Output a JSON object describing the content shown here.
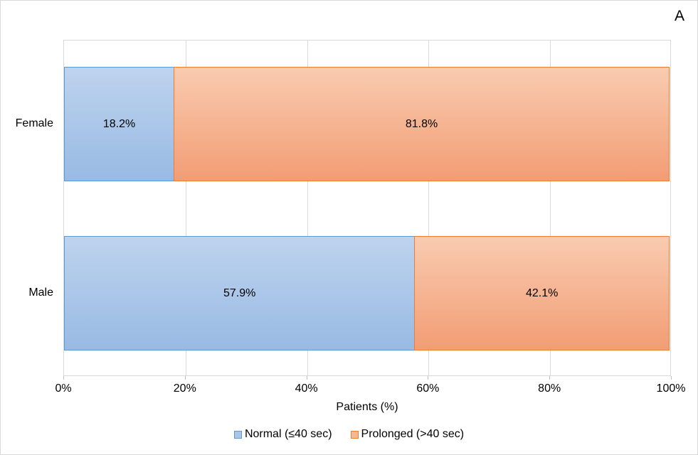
{
  "panel_label": "A",
  "colors": {
    "normal_fill_top": "#BED3EE",
    "normal_fill_bottom": "#98BAE3",
    "normal_border": "#5B9BD5",
    "prolonged_fill_top": "#F9CBB0",
    "prolonged_fill_bottom": "#F29D74",
    "prolonged_border": "#ED7D31",
    "gridline": "#D9D9D9",
    "text": "#000000"
  },
  "chart_data": {
    "type": "bar",
    "orientation": "horizontal",
    "stacked": true,
    "title": "",
    "xlabel": "Patients (%)",
    "ylabel": "",
    "categories": [
      "Female",
      "Male"
    ],
    "series": [
      {
        "name": "Normal (≤40 sec)",
        "values": [
          18.2,
          57.9
        ],
        "labels": [
          "18.2%",
          "57.9%"
        ]
      },
      {
        "name": "Prolonged (>40 sec)",
        "values": [
          81.8,
          42.1
        ],
        "labels": [
          "81.8%",
          "42.1%"
        ]
      }
    ],
    "xlim": [
      0,
      100
    ],
    "x_ticks": [
      "0%",
      "20%",
      "40%",
      "60%",
      "80%",
      "100%"
    ],
    "grid": true,
    "legend_position": "bottom"
  }
}
